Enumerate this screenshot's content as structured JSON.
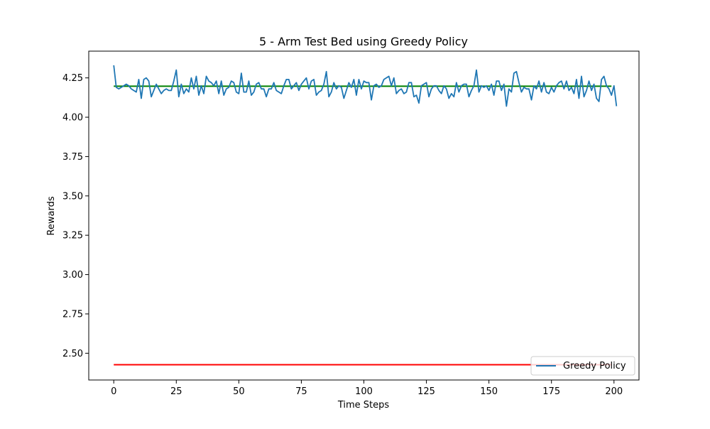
{
  "chart_data": {
    "type": "line",
    "title": "5 - Arm Test Bed using Greedy Policy",
    "xlabel": "Time Steps",
    "ylabel": "Rewards",
    "xlim": [
      -10,
      210
    ],
    "ylim": [
      2.33,
      4.42
    ],
    "xticks": [
      0,
      25,
      50,
      75,
      100,
      125,
      150,
      175,
      200
    ],
    "yticks": [
      2.5,
      2.75,
      3.0,
      3.25,
      3.5,
      3.75,
      4.0,
      4.25
    ],
    "xtick_labels": [
      "0",
      "25",
      "50",
      "75",
      "100",
      "125",
      "150",
      "175",
      "200"
    ],
    "ytick_labels": [
      "2.50",
      "2.75",
      "3.00",
      "3.25",
      "3.50",
      "3.75",
      "4.00",
      "4.25"
    ],
    "grid": false,
    "legend": {
      "position": "bottom-right",
      "entries": [
        "Greedy Policy"
      ]
    },
    "series": [
      {
        "name": "Greedy Policy",
        "color": "#1f77b4",
        "x_start": 0,
        "x_step": 1,
        "values": [
          4.33,
          4.19,
          4.18,
          4.19,
          4.2,
          4.21,
          4.2,
          4.18,
          4.17,
          4.16,
          4.24,
          4.12,
          4.24,
          4.25,
          4.23,
          4.13,
          4.17,
          4.21,
          4.18,
          4.15,
          4.17,
          4.18,
          4.17,
          4.17,
          4.23,
          4.3,
          4.13,
          4.21,
          4.15,
          4.18,
          4.16,
          4.25,
          4.18,
          4.26,
          4.14,
          4.2,
          4.15,
          4.26,
          4.23,
          4.22,
          4.2,
          4.23,
          4.15,
          4.23,
          4.14,
          4.18,
          4.19,
          4.23,
          4.22,
          4.16,
          4.15,
          4.28,
          4.16,
          4.16,
          4.23,
          4.14,
          4.16,
          4.21,
          4.22,
          4.18,
          4.18,
          4.13,
          4.18,
          4.18,
          4.22,
          4.17,
          4.16,
          4.15,
          4.2,
          4.24,
          4.24,
          4.18,
          4.2,
          4.22,
          4.17,
          4.21,
          4.23,
          4.25,
          4.18,
          4.23,
          4.24,
          4.14,
          4.16,
          4.17,
          4.21,
          4.29,
          4.13,
          4.16,
          4.22,
          4.18,
          4.2,
          4.19,
          4.12,
          4.17,
          4.22,
          4.19,
          4.24,
          4.14,
          4.24,
          4.18,
          4.23,
          4.22,
          4.22,
          4.11,
          4.2,
          4.21,
          4.19,
          4.2,
          4.24,
          4.25,
          4.26,
          4.2,
          4.25,
          4.15,
          4.17,
          4.18,
          4.15,
          4.16,
          4.22,
          4.22,
          4.13,
          4.14,
          4.09,
          4.2,
          4.21,
          4.22,
          4.13,
          4.18,
          4.2,
          4.2,
          4.17,
          4.15,
          4.2,
          4.18,
          4.12,
          4.15,
          4.13,
          4.22,
          4.16,
          4.2,
          4.21,
          4.21,
          4.13,
          4.17,
          4.2,
          4.3,
          4.16,
          4.2,
          4.19,
          4.2,
          4.17,
          4.21,
          4.14,
          4.23,
          4.23,
          4.17,
          4.21,
          4.07,
          4.18,
          4.16,
          4.28,
          4.29,
          4.22,
          4.16,
          4.19,
          4.18,
          4.18,
          4.11,
          4.2,
          4.18,
          4.23,
          4.16,
          4.22,
          4.16,
          4.15,
          4.19,
          4.16,
          4.2,
          4.22,
          4.23,
          4.18,
          4.23,
          4.17,
          4.19,
          4.15,
          4.24,
          4.12,
          4.26,
          4.13,
          4.17,
          4.23,
          4.17,
          4.21,
          4.12,
          4.1,
          4.24,
          4.26,
          4.2,
          4.18,
          4.14,
          4.2,
          4.07
        ]
      }
    ],
    "hlines": [
      {
        "y": 4.197,
        "x_range": [
          0,
          199
        ],
        "color": "#008000"
      },
      {
        "y": 2.427,
        "x_range": [
          0,
          199
        ],
        "color": "#ff0000"
      }
    ]
  }
}
